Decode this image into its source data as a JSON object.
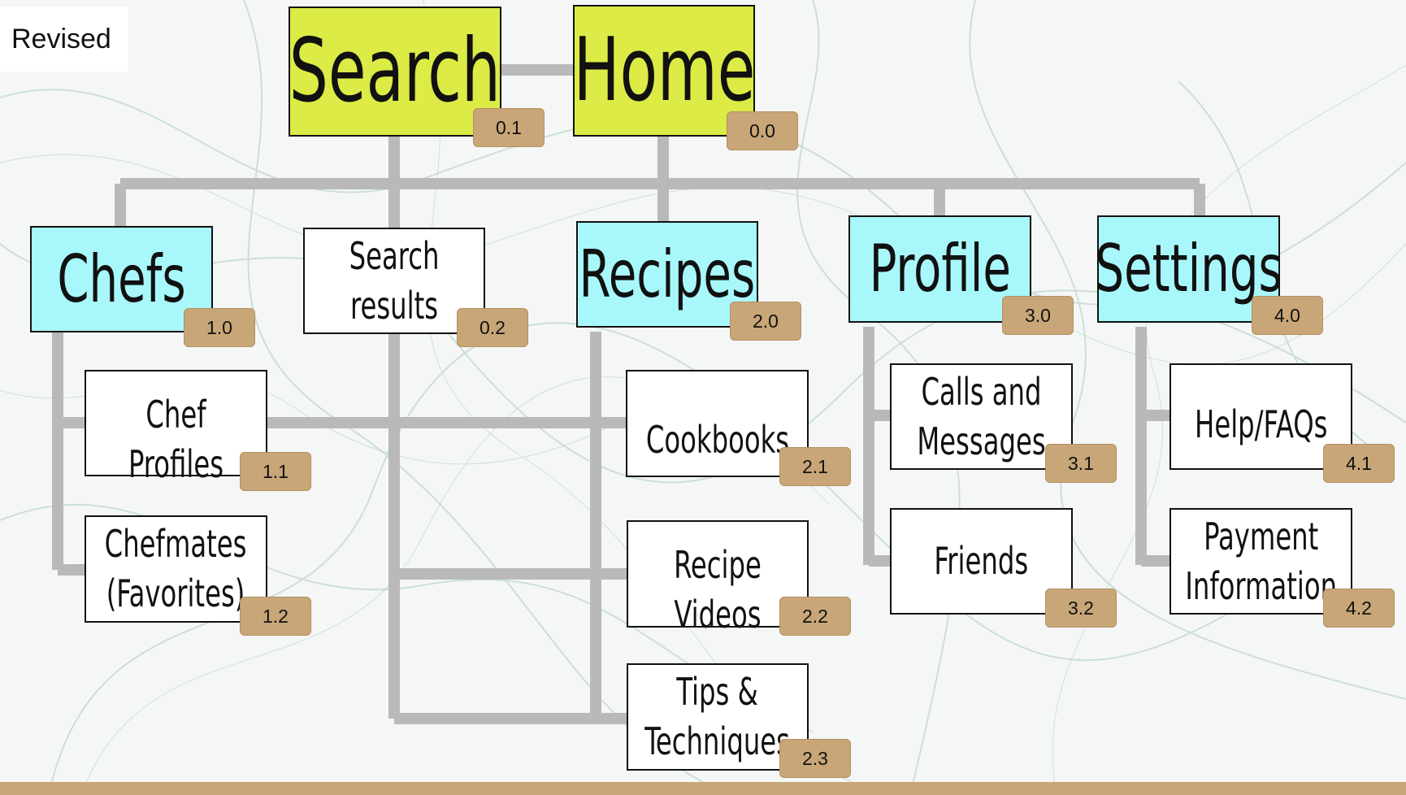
{
  "revised_label": "Revised",
  "nodes": {
    "home": {
      "label": "Home",
      "tag": "0.0"
    },
    "search": {
      "label": "Search",
      "tag": "0.1"
    },
    "search_results": {
      "label": "Search\nresults",
      "tag": "0.2"
    },
    "chefs": {
      "label": "Chefs",
      "tag": "1.0"
    },
    "chef_profiles": {
      "label": "Chef Profiles",
      "tag": "1.1"
    },
    "chefmates": {
      "label": "Chefmates\n(Favorites)",
      "tag": "1.2"
    },
    "recipes": {
      "label": "Recipes",
      "tag": "2.0"
    },
    "cookbooks": {
      "label": "Cookbooks",
      "tag": "2.1"
    },
    "recipe_videos": {
      "label": "Recipe Videos",
      "tag": "2.2"
    },
    "tips": {
      "label": "Tips &\nTechniques",
      "tag": "2.3"
    },
    "profile": {
      "label": "Profile",
      "tag": "3.0"
    },
    "calls_messages": {
      "label": "Calls and\nMessages",
      "tag": "3.1"
    },
    "friends": {
      "label": "Friends",
      "tag": "3.2"
    },
    "settings": {
      "label": "Settings",
      "tag": "4.0"
    },
    "help_faqs": {
      "label": "Help/FAQs",
      "tag": "4.1"
    },
    "payment": {
      "label": "Payment\nInformation",
      "tag": "4.2"
    }
  },
  "colors": {
    "top_level": "#dceb46",
    "section": "#a8f8fb",
    "page": "#ffffff",
    "tag": "#c8a677",
    "connector": "#b9b9b9"
  }
}
